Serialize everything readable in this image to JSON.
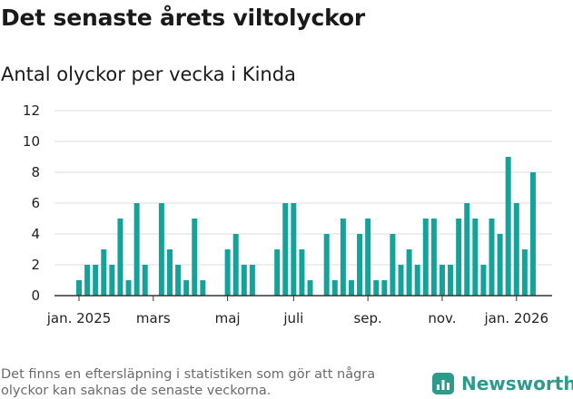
{
  "title": "Det senaste årets viltolyckor",
  "subtitle": "Antal olyckor per vecka i Kinda",
  "footnote": "Det finns en eftersläpning i statistiken som gör att några olyckor kan saknas de senaste veckorna.",
  "brand": {
    "name": "Newsworthy",
    "icon": "bar-chart-logo-icon",
    "color": "#2e9a8c"
  },
  "colors": {
    "bar": "#14a39a",
    "grid": "#dddddd",
    "axis": "#333333"
  },
  "chart_data": {
    "type": "bar",
    "title": "Det senaste årets viltolyckor",
    "subtitle": "Antal olyckor per vecka i Kinda",
    "ylim": [
      0,
      12
    ],
    "yticks": [
      0,
      2,
      4,
      6,
      8,
      10,
      12
    ],
    "x_tick_labels": [
      {
        "label": "jan. 2025",
        "week": 1
      },
      {
        "label": "mars",
        "week": 10
      },
      {
        "label": "maj",
        "week": 19
      },
      {
        "label": "juli",
        "week": 27
      },
      {
        "label": "sep.",
        "week": 36
      },
      {
        "label": "nov.",
        "week": 45
      },
      {
        "label": "jan. 2026",
        "week": 54
      }
    ],
    "grid": true,
    "series": [
      {
        "values": [
          1,
          2,
          2,
          3,
          2,
          5,
          1,
          6,
          2,
          0,
          6,
          3,
          2,
          1,
          5,
          1,
          0,
          0,
          3,
          4,
          2,
          2,
          0,
          0,
          3,
          6,
          6,
          3,
          1,
          0,
          4,
          1,
          5,
          1,
          4,
          5,
          1,
          1,
          4,
          2,
          3,
          2,
          5,
          5,
          2,
          2,
          5,
          6,
          5,
          2,
          5,
          4,
          9,
          6,
          3,
          8
        ]
      }
    ]
  }
}
